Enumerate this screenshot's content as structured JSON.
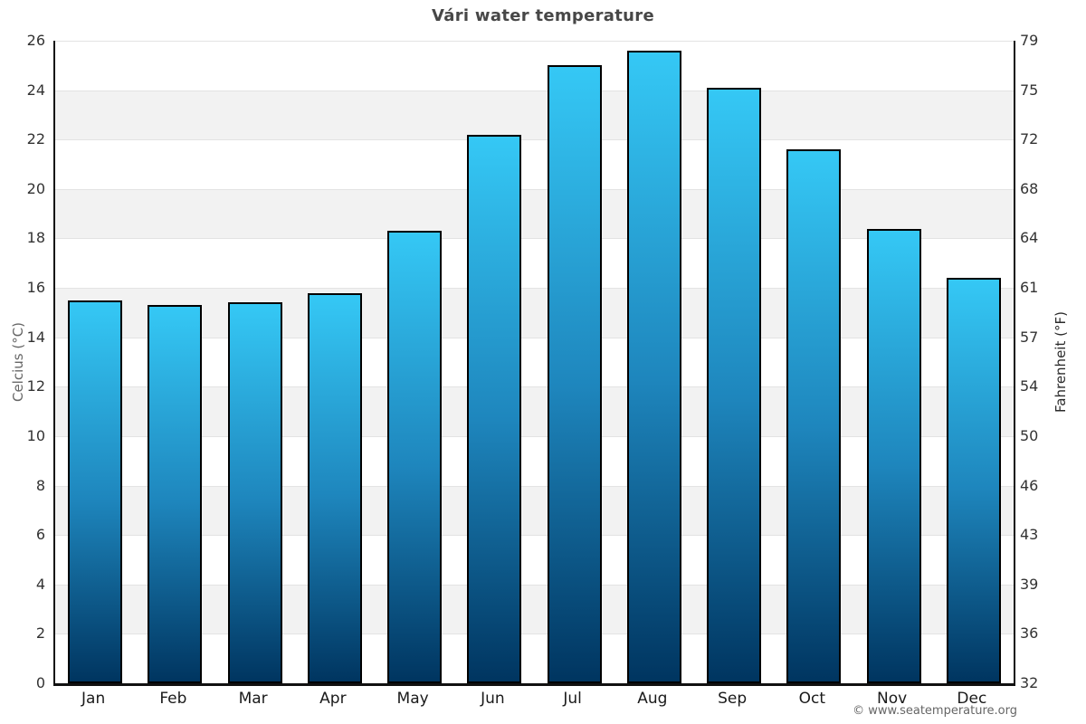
{
  "title": "Vári water temperature",
  "watermark": "© www.seatemperature.org",
  "chart_data": {
    "type": "bar",
    "title": "Vári water temperature",
    "categories": [
      "Jan",
      "Feb",
      "Mar",
      "Apr",
      "May",
      "Jun",
      "Jul",
      "Aug",
      "Sep",
      "Oct",
      "Nov",
      "Dec"
    ],
    "values": [
      15.5,
      15.3,
      15.4,
      15.8,
      18.3,
      22.2,
      25.0,
      25.6,
      24.1,
      21.6,
      18.4,
      16.4
    ],
    "unit": "°C",
    "xlabel": "",
    "ylabel_left": "Celcius (°C)",
    "ylabel_right": "Fahrenheit (°F)",
    "ylim": [
      0,
      26
    ],
    "yticks_celsius": [
      0,
      2,
      4,
      6,
      8,
      10,
      12,
      14,
      16,
      18,
      20,
      22,
      24,
      26
    ],
    "yticks_fahrenheit": [
      32,
      36,
      39,
      43,
      46,
      50,
      54,
      57,
      61,
      64,
      68,
      72,
      75,
      79
    ],
    "grid": "alternating horizontal shaded bands every 2°C with light gridlines",
    "legend": "none"
  },
  "colors": {
    "background": "#ffffff",
    "bar_gradient_top": "#35c8f5",
    "bar_gradient_mid": "#1e86bd",
    "bar_gradient_bottom": "#003560",
    "bar_border": "#000000",
    "band_shade": "#f2f2f2",
    "gridline": "#e3e3e3",
    "axis_line": "#111111",
    "title_text": "#474747",
    "tick_text": "#333333",
    "month_text": "#1a1a1a",
    "left_axis_label_text": "#666666",
    "right_axis_label_text": "#2b2b2b",
    "watermark_text": "#666666"
  }
}
